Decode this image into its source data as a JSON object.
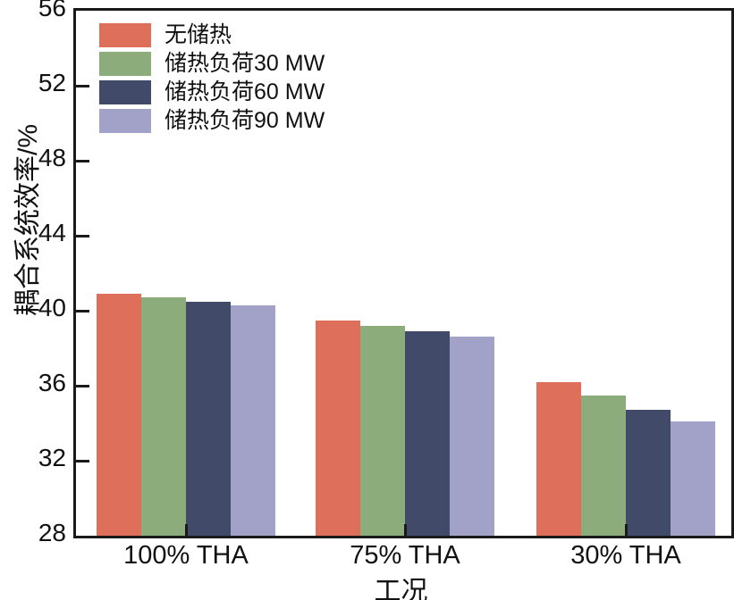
{
  "chart_data": {
    "type": "bar",
    "title": "",
    "xlabel": "工况",
    "ylabel": "耦合系统效率/%",
    "categories": [
      "100% THA",
      "75% THA",
      "30% THA"
    ],
    "series": [
      {
        "name": "无储热",
        "color": "#DD6F5B",
        "values": [
          40.9,
          39.5,
          36.2
        ]
      },
      {
        "name": "储热负荷30 MW",
        "color": "#8CAC7C",
        "values": [
          40.7,
          39.2,
          35.5
        ]
      },
      {
        "name": "储热负荷60 MW",
        "color": "#414A68",
        "values": [
          40.5,
          38.9,
          34.7
        ]
      },
      {
        "name": "储热负荷90 MW",
        "color": "#A2A1C8",
        "values": [
          40.3,
          38.6,
          34.1
        ]
      }
    ],
    "ylim": [
      28,
      56
    ],
    "yticks": [
      28,
      32,
      36,
      40,
      44,
      48,
      52,
      56
    ],
    "grid": false,
    "legend_position": "top-left-inside",
    "axis_color": "#1a1a1a",
    "background_color": "#ffffff"
  }
}
